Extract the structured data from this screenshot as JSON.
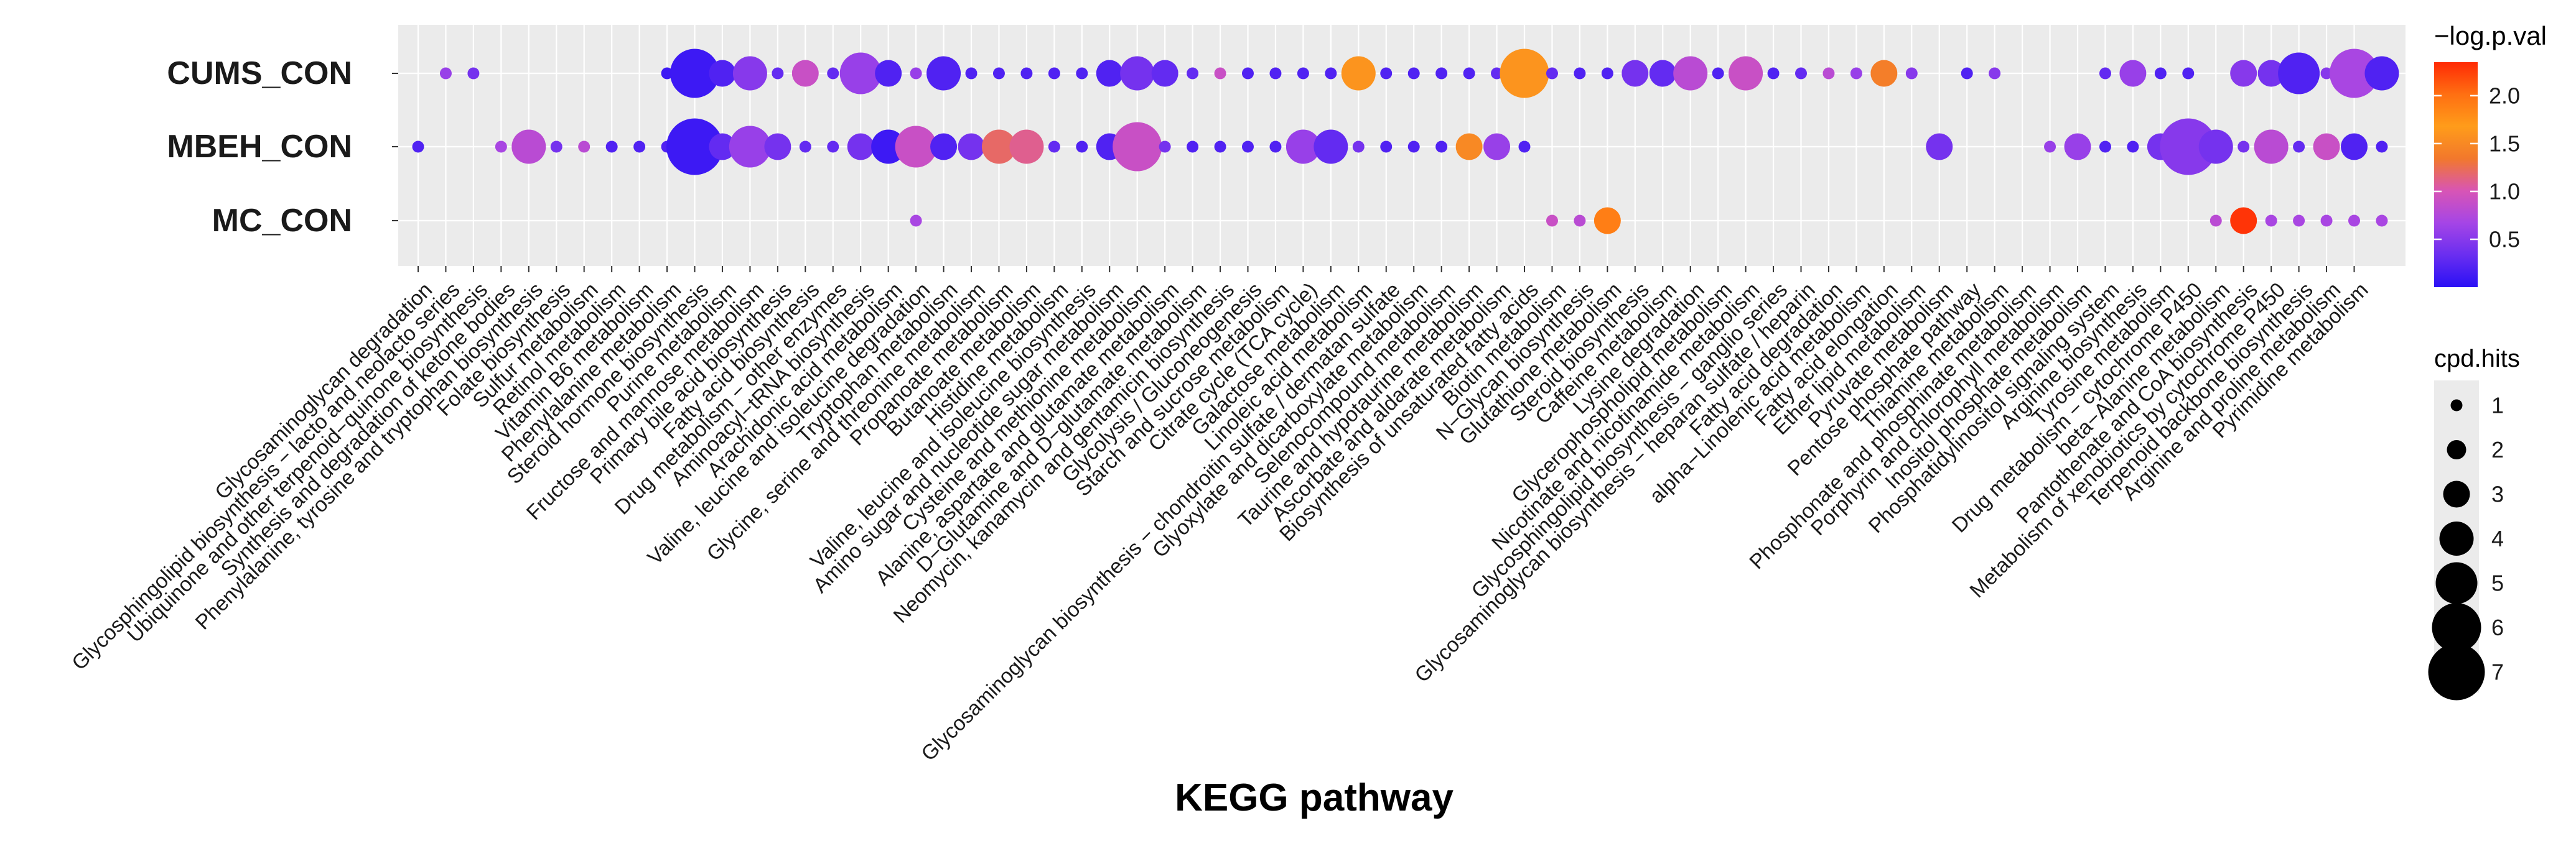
{
  "chart_data": {
    "type": "bubble",
    "xlabel": "KEGG pathway",
    "ylabel": "",
    "groups": [
      "CUMS_CON",
      "MBEH_CON",
      "MC_CON"
    ],
    "pathways": [
      "Glycosaminoglycan degradation",
      "Glycosphingolipid biosynthesis − lacto and neolacto series",
      "Ubiquinone and other terpenoid−quinone biosynthesis",
      "Synthesis and degradation of ketone bodies",
      "Phenylalanine, tyrosine and tryptophan biosynthesis",
      "Folate biosynthesis",
      "Sulfur metabolism",
      "Retinol metabolism",
      "Vitamin B6 metabolism",
      "Phenylalanine metabolism",
      "Steroid hormone biosynthesis",
      "Purine metabolism",
      "Fructose and mannose metabolism",
      "Primary bile acid biosynthesis",
      "Fatty acid biosynthesis",
      "Drug metabolism − other enzymes",
      "Aminoacyl−tRNA biosynthesis",
      "Arachidonic acid metabolism",
      "Valine, leucine and isoleucine degradation",
      "Tryptophan metabolism",
      "Glycine, serine and threonine metabolism",
      "Propanoate metabolism",
      "Butanoate metabolism",
      "Histidine metabolism",
      "Valine, leucine and isoleucine biosynthesis",
      "Amino sugar and nucleotide sugar metabolism",
      "Cysteine and methionine metabolism",
      "Alanine, aspartate and glutamate metabolism",
      "D−Glutamine and D−glutamate metabolism",
      "Neomycin, kanamycin and gentamicin biosynthesis",
      "Glycolysis / Gluconeogenesis",
      "Starch and sucrose metabolism",
      "Citrate cycle (TCA cycle)",
      "Galactose metabolism",
      "Linoleic acid metabolism",
      "Glycosaminoglycan biosynthesis − chondroitin sulfate / dermatan sulfate",
      "Glyoxylate and dicarboxylate metabolism",
      "Selenocompound metabolism",
      "Taurine and hypotaurine metabolism",
      "Ascorbate and aldarate metabolism",
      "Biosynthesis of unsaturated fatty acids",
      "Biotin metabolism",
      "N−Glycan biosynthesis",
      "Glutathione metabolism",
      "Steroid biosynthesis",
      "Caffeine metabolism",
      "Lysine degradation",
      "Glycerophospholipid metabolism",
      "Nicotinate and nicotinamide metabolism",
      "Glycosphingolipid biosynthesis − ganglio series",
      "Glycosaminoglycan biosynthesis − heparan sulfate / heparin",
      "Fatty acid degradation",
      "alpha−Linolenic acid metabolism",
      "Fatty acid elongation",
      "Ether lipid metabolism",
      "Pyruvate metabolism",
      "Pentose phosphate pathway",
      "Thiamine metabolism",
      "Phosphonate and phosphinate metabolism",
      "Porphyrin and chlorophyll metabolism",
      "Inositol phosphate metabolism",
      "Phosphatidylinositol signaling system",
      "Arginine biosynthesis",
      "Tyrosine metabolism",
      "Drug metabolism − cytochrome P450",
      "beta−Alanine metabolism",
      "Pantothenate and CoA biosynthesis",
      "Metabolism of xenobiotics by cytochrome P450",
      "Terpenoid backbone biosynthesis",
      "Arginine and proline metabolism",
      "Pyrimidine metabolism"
    ],
    "size_key": "cpd.hits",
    "color_key": "−log.p.val",
    "points": [
      {
        "group": "CUMS_CON",
        "x": 1,
        "hits": 1,
        "neglogp": 0.6
      },
      {
        "group": "CUMS_CON",
        "x": 2,
        "hits": 1,
        "neglogp": 0.4
      },
      {
        "group": "CUMS_CON",
        "x": 9,
        "hits": 1,
        "neglogp": 0.1
      },
      {
        "group": "CUMS_CON",
        "x": 10,
        "hits": 6,
        "neglogp": 0.1
      },
      {
        "group": "CUMS_CON",
        "x": 11,
        "hits": 3,
        "neglogp": 0.2
      },
      {
        "group": "CUMS_CON",
        "x": 12,
        "hits": 4,
        "neglogp": 0.5
      },
      {
        "group": "CUMS_CON",
        "x": 13,
        "hits": 1,
        "neglogp": 0.3
      },
      {
        "group": "CUMS_CON",
        "x": 14,
        "hits": 3,
        "neglogp": 0.9
      },
      {
        "group": "CUMS_CON",
        "x": 15,
        "hits": 1,
        "neglogp": 0.3
      },
      {
        "group": "CUMS_CON",
        "x": 16,
        "hits": 5,
        "neglogp": 0.6
      },
      {
        "group": "CUMS_CON",
        "x": 17,
        "hits": 3,
        "neglogp": 0.2
      },
      {
        "group": "CUMS_CON",
        "x": 18,
        "hits": 1,
        "neglogp": 0.6
      },
      {
        "group": "CUMS_CON",
        "x": 19,
        "hits": 4,
        "neglogp": 0.2
      },
      {
        "group": "CUMS_CON",
        "x": 20,
        "hits": 1,
        "neglogp": 0.2
      },
      {
        "group": "CUMS_CON",
        "x": 21,
        "hits": 1,
        "neglogp": 0.2
      },
      {
        "group": "CUMS_CON",
        "x": 22,
        "hits": 1,
        "neglogp": 0.2
      },
      {
        "group": "CUMS_CON",
        "x": 23,
        "hits": 1,
        "neglogp": 0.2
      },
      {
        "group": "CUMS_CON",
        "x": 24,
        "hits": 1,
        "neglogp": 0.2
      },
      {
        "group": "CUMS_CON",
        "x": 25,
        "hits": 3,
        "neglogp": 0.2
      },
      {
        "group": "CUMS_CON",
        "x": 26,
        "hits": 4,
        "neglogp": 0.4
      },
      {
        "group": "CUMS_CON",
        "x": 27,
        "hits": 3,
        "neglogp": 0.3
      },
      {
        "group": "CUMS_CON",
        "x": 28,
        "hits": 1,
        "neglogp": 0.3
      },
      {
        "group": "CUMS_CON",
        "x": 29,
        "hits": 1,
        "neglogp": 0.9
      },
      {
        "group": "CUMS_CON",
        "x": 30,
        "hits": 1,
        "neglogp": 0.2
      },
      {
        "group": "CUMS_CON",
        "x": 31,
        "hits": 1,
        "neglogp": 0.2
      },
      {
        "group": "CUMS_CON",
        "x": 32,
        "hits": 1,
        "neglogp": 0.2
      },
      {
        "group": "CUMS_CON",
        "x": 33,
        "hits": 1,
        "neglogp": 0.2
      },
      {
        "group": "CUMS_CON",
        "x": 34,
        "hits": 4,
        "neglogp": 1.6
      },
      {
        "group": "CUMS_CON",
        "x": 35,
        "hits": 1,
        "neglogp": 0.2
      },
      {
        "group": "CUMS_CON",
        "x": 36,
        "hits": 1,
        "neglogp": 0.2
      },
      {
        "group": "CUMS_CON",
        "x": 37,
        "hits": 1,
        "neglogp": 0.2
      },
      {
        "group": "CUMS_CON",
        "x": 38,
        "hits": 1,
        "neglogp": 0.2
      },
      {
        "group": "CUMS_CON",
        "x": 39,
        "hits": 1,
        "neglogp": 0.3
      },
      {
        "group": "CUMS_CON",
        "x": 40,
        "hits": 6,
        "neglogp": 1.6
      },
      {
        "group": "CUMS_CON",
        "x": 41,
        "hits": 1,
        "neglogp": 0.3
      },
      {
        "group": "CUMS_CON",
        "x": 42,
        "hits": 1,
        "neglogp": 0.2
      },
      {
        "group": "CUMS_CON",
        "x": 43,
        "hits": 1,
        "neglogp": 0.2
      },
      {
        "group": "CUMS_CON",
        "x": 44,
        "hits": 3,
        "neglogp": 0.4
      },
      {
        "group": "CUMS_CON",
        "x": 45,
        "hits": 3,
        "neglogp": 0.3
      },
      {
        "group": "CUMS_CON",
        "x": 46,
        "hits": 4,
        "neglogp": 0.8
      },
      {
        "group": "CUMS_CON",
        "x": 47,
        "hits": 1,
        "neglogp": 0.2
      },
      {
        "group": "CUMS_CON",
        "x": 48,
        "hits": 4,
        "neglogp": 0.9
      },
      {
        "group": "CUMS_CON",
        "x": 49,
        "hits": 1,
        "neglogp": 0.2
      },
      {
        "group": "CUMS_CON",
        "x": 50,
        "hits": 1,
        "neglogp": 0.3
      },
      {
        "group": "CUMS_CON",
        "x": 51,
        "hits": 1,
        "neglogp": 0.8
      },
      {
        "group": "CUMS_CON",
        "x": 52,
        "hits": 1,
        "neglogp": 0.6
      },
      {
        "group": "CUMS_CON",
        "x": 53,
        "hits": 3,
        "neglogp": 1.4
      },
      {
        "group": "CUMS_CON",
        "x": 54,
        "hits": 1,
        "neglogp": 0.5
      },
      {
        "group": "CUMS_CON",
        "x": 56,
        "hits": 1,
        "neglogp": 0.2
      },
      {
        "group": "CUMS_CON",
        "x": 57,
        "hits": 1,
        "neglogp": 0.5
      },
      {
        "group": "CUMS_CON",
        "x": 61,
        "hits": 1,
        "neglogp": 0.3
      },
      {
        "group": "CUMS_CON",
        "x": 62,
        "hits": 3,
        "neglogp": 0.6
      },
      {
        "group": "CUMS_CON",
        "x": 63,
        "hits": 1,
        "neglogp": 0.2
      },
      {
        "group": "CUMS_CON",
        "x": 64,
        "hits": 1,
        "neglogp": 0.2
      },
      {
        "group": "CUMS_CON",
        "x": 66,
        "hits": 3,
        "neglogp": 0.5
      },
      {
        "group": "CUMS_CON",
        "x": 67,
        "hits": 3,
        "neglogp": 0.4
      },
      {
        "group": "CUMS_CON",
        "x": 68,
        "hits": 5,
        "neglogp": 0.2
      },
      {
        "group": "CUMS_CON",
        "x": 69,
        "hits": 1,
        "neglogp": 0.5
      },
      {
        "group": "CUMS_CON",
        "x": 70,
        "hits": 6,
        "neglogp": 0.7
      },
      {
        "group": "CUMS_CON",
        "x": 71,
        "hits": 4,
        "neglogp": 0.2
      },
      {
        "group": "MBEH_CON",
        "x": 0,
        "hits": 1,
        "neglogp": 0.2
      },
      {
        "group": "MBEH_CON",
        "x": 3,
        "hits": 1,
        "neglogp": 0.7
      },
      {
        "group": "MBEH_CON",
        "x": 4,
        "hits": 4,
        "neglogp": 0.8
      },
      {
        "group": "MBEH_CON",
        "x": 5,
        "hits": 1,
        "neglogp": 0.4
      },
      {
        "group": "MBEH_CON",
        "x": 6,
        "hits": 1,
        "neglogp": 0.8
      },
      {
        "group": "MBEH_CON",
        "x": 7,
        "hits": 1,
        "neglogp": 0.2
      },
      {
        "group": "MBEH_CON",
        "x": 8,
        "hits": 1,
        "neglogp": 0.2
      },
      {
        "group": "MBEH_CON",
        "x": 9,
        "hits": 1,
        "neglogp": 0.2
      },
      {
        "group": "MBEH_CON",
        "x": 10,
        "hits": 7,
        "neglogp": 0.1
      },
      {
        "group": "MBEH_CON",
        "x": 11,
        "hits": 3,
        "neglogp": 0.3
      },
      {
        "group": "MBEH_CON",
        "x": 12,
        "hits": 5,
        "neglogp": 0.6
      },
      {
        "group": "MBEH_CON",
        "x": 13,
        "hits": 3,
        "neglogp": 0.4
      },
      {
        "group": "MBEH_CON",
        "x": 14,
        "hits": 1,
        "neglogp": 0.3
      },
      {
        "group": "MBEH_CON",
        "x": 15,
        "hits": 1,
        "neglogp": 0.3
      },
      {
        "group": "MBEH_CON",
        "x": 16,
        "hits": 3,
        "neglogp": 0.4
      },
      {
        "group": "MBEH_CON",
        "x": 17,
        "hits": 4,
        "neglogp": 0.1
      },
      {
        "group": "MBEH_CON",
        "x": 18,
        "hits": 5,
        "neglogp": 0.9
      },
      {
        "group": "MBEH_CON",
        "x": 19,
        "hits": 3,
        "neglogp": 0.2
      },
      {
        "group": "MBEH_CON",
        "x": 20,
        "hits": 3,
        "neglogp": 0.4
      },
      {
        "group": "MBEH_CON",
        "x": 21,
        "hits": 4,
        "neglogp": 1.2
      },
      {
        "group": "MBEH_CON",
        "x": 22,
        "hits": 4,
        "neglogp": 1.1
      },
      {
        "group": "MBEH_CON",
        "x": 23,
        "hits": 1,
        "neglogp": 0.3
      },
      {
        "group": "MBEH_CON",
        "x": 24,
        "hits": 1,
        "neglogp": 0.2
      },
      {
        "group": "MBEH_CON",
        "x": 25,
        "hits": 3,
        "neglogp": 0.2
      },
      {
        "group": "MBEH_CON",
        "x": 26,
        "hits": 6,
        "neglogp": 0.9
      },
      {
        "group": "MBEH_CON",
        "x": 27,
        "hits": 1,
        "neglogp": 0.4
      },
      {
        "group": "MBEH_CON",
        "x": 28,
        "hits": 1,
        "neglogp": 0.2
      },
      {
        "group": "MBEH_CON",
        "x": 29,
        "hits": 1,
        "neglogp": 0.2
      },
      {
        "group": "MBEH_CON",
        "x": 30,
        "hits": 1,
        "neglogp": 0.2
      },
      {
        "group": "MBEH_CON",
        "x": 31,
        "hits": 1,
        "neglogp": 0.2
      },
      {
        "group": "MBEH_CON",
        "x": 32,
        "hits": 4,
        "neglogp": 0.6
      },
      {
        "group": "MBEH_CON",
        "x": 33,
        "hits": 4,
        "neglogp": 0.3
      },
      {
        "group": "MBEH_CON",
        "x": 34,
        "hits": 1,
        "neglogp": 0.4
      },
      {
        "group": "MBEH_CON",
        "x": 35,
        "hits": 1,
        "neglogp": 0.2
      },
      {
        "group": "MBEH_CON",
        "x": 36,
        "hits": 1,
        "neglogp": 0.2
      },
      {
        "group": "MBEH_CON",
        "x": 37,
        "hits": 1,
        "neglogp": 0.2
      },
      {
        "group": "MBEH_CON",
        "x": 38,
        "hits": 3,
        "neglogp": 1.5
      },
      {
        "group": "MBEH_CON",
        "x": 39,
        "hits": 3,
        "neglogp": 0.6
      },
      {
        "group": "MBEH_CON",
        "x": 40,
        "hits": 1,
        "neglogp": 0.2
      },
      {
        "group": "MBEH_CON",
        "x": 55,
        "hits": 3,
        "neglogp": 0.4
      },
      {
        "group": "MBEH_CON",
        "x": 59,
        "hits": 1,
        "neglogp": 0.6
      },
      {
        "group": "MBEH_CON",
        "x": 60,
        "hits": 3,
        "neglogp": 0.6
      },
      {
        "group": "MBEH_CON",
        "x": 61,
        "hits": 1,
        "neglogp": 0.2
      },
      {
        "group": "MBEH_CON",
        "x": 62,
        "hits": 1,
        "neglogp": 0.2
      },
      {
        "group": "MBEH_CON",
        "x": 63,
        "hits": 3,
        "neglogp": 0.4
      },
      {
        "group": "MBEH_CON",
        "x": 64,
        "hits": 7,
        "neglogp": 0.5
      },
      {
        "group": "MBEH_CON",
        "x": 65,
        "hits": 4,
        "neglogp": 0.4
      },
      {
        "group": "MBEH_CON",
        "x": 66,
        "hits": 1,
        "neglogp": 0.4
      },
      {
        "group": "MBEH_CON",
        "x": 67,
        "hits": 4,
        "neglogp": 0.8
      },
      {
        "group": "MBEH_CON",
        "x": 68,
        "hits": 1,
        "neglogp": 0.3
      },
      {
        "group": "MBEH_CON",
        "x": 69,
        "hits": 3,
        "neglogp": 0.9
      },
      {
        "group": "MBEH_CON",
        "x": 70,
        "hits": 3,
        "neglogp": 0.2
      },
      {
        "group": "MBEH_CON",
        "x": 71,
        "hits": 1,
        "neglogp": 0.2
      },
      {
        "group": "MC_CON",
        "x": 18,
        "hits": 1,
        "neglogp": 0.7
      },
      {
        "group": "MC_CON",
        "x": 41,
        "hits": 1,
        "neglogp": 0.9
      },
      {
        "group": "MC_CON",
        "x": 42,
        "hits": 1,
        "neglogp": 0.8
      },
      {
        "group": "MC_CON",
        "x": 43,
        "hits": 3,
        "neglogp": 1.9
      },
      {
        "group": "MC_CON",
        "x": 65,
        "hits": 1,
        "neglogp": 0.8
      },
      {
        "group": "MC_CON",
        "x": 66,
        "hits": 3,
        "neglogp": 2.3
      },
      {
        "group": "MC_CON",
        "x": 67,
        "hits": 1,
        "neglogp": 0.7
      },
      {
        "group": "MC_CON",
        "x": 68,
        "hits": 1,
        "neglogp": 0.7
      },
      {
        "group": "MC_CON",
        "x": 69,
        "hits": 1,
        "neglogp": 0.7
      },
      {
        "group": "MC_CON",
        "x": 70,
        "hits": 1,
        "neglogp": 0.7
      },
      {
        "group": "MC_CON",
        "x": 71,
        "hits": 1,
        "neglogp": 0.7
      }
    ],
    "color_scale": {
      "min": 0,
      "max": 2.35,
      "ticks": [
        0.5,
        1.0,
        1.5,
        2.0
      ],
      "tick_labels": [
        "0.5",
        "1.0",
        "1.5",
        "2.0"
      ],
      "colors": [
        "#2a10f5",
        "#6a2ef0",
        "#a545e6",
        "#d855b5",
        "#f2782c",
        "#ff9c1a",
        "#ff6f12",
        "#ff2a05"
      ]
    },
    "size_legend": {
      "title": "cpd.hits",
      "values": [
        1,
        2,
        3,
        4,
        5,
        6,
        7
      ],
      "labels": [
        "1",
        "2",
        "3",
        "4",
        "5",
        "6",
        "7"
      ]
    },
    "colors": {
      "panel_bg": "#ebebeb",
      "grid": "#ffffff",
      "text": "#1a1a1a"
    }
  }
}
